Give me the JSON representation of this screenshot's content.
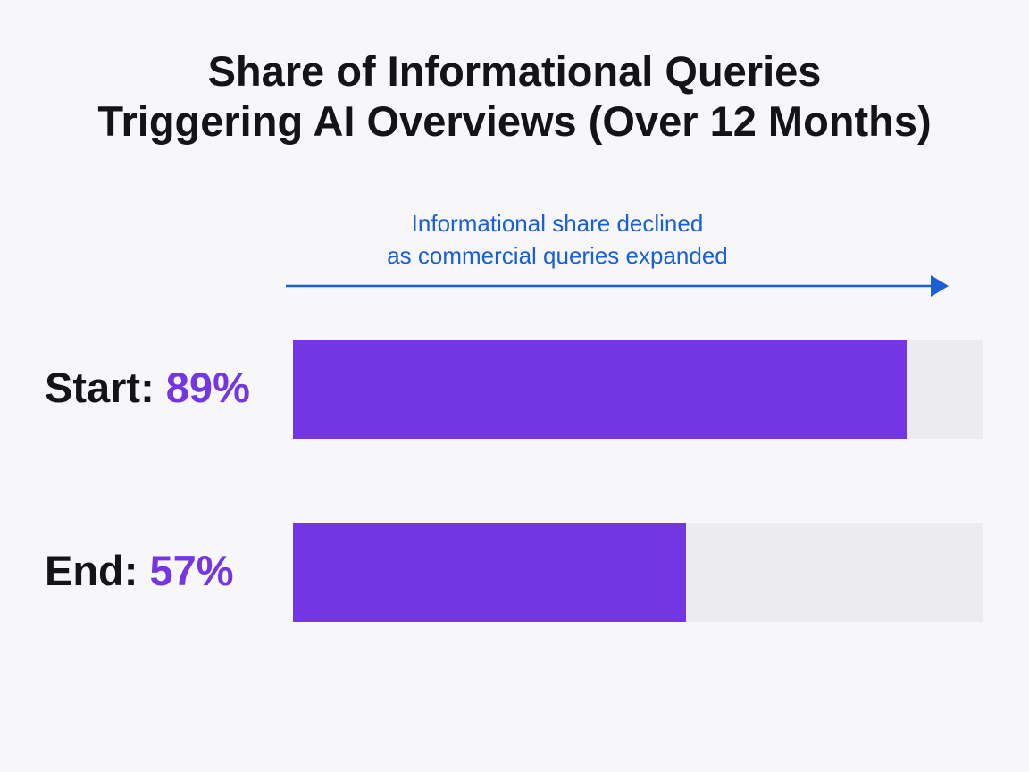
{
  "chart_data": {
    "type": "bar",
    "orientation": "horizontal",
    "title": "Share of Informational Queries Triggering AI Overviews (Over 12 Months)",
    "title_lines": [
      "Share of Informational Queries",
      "Triggering AI Overviews (Over 12 Months)"
    ],
    "annotation_lines": [
      "Informational share declined",
      "as commercial queries expanded"
    ],
    "categories": [
      "Start",
      "End"
    ],
    "values": [
      89,
      57
    ],
    "value_labels": [
      "89%",
      "57%"
    ],
    "row_labels": [
      "Start:",
      "End:"
    ],
    "xlim": [
      0,
      100
    ],
    "grid": false,
    "legend": "none"
  },
  "colors": {
    "bar_fill": "#7436e2",
    "bar_track": "#ebebf0",
    "annotation": "#1a5fd6",
    "value_text": "#7436e2",
    "title_text": "#141418",
    "background": "#f7f7f9"
  }
}
